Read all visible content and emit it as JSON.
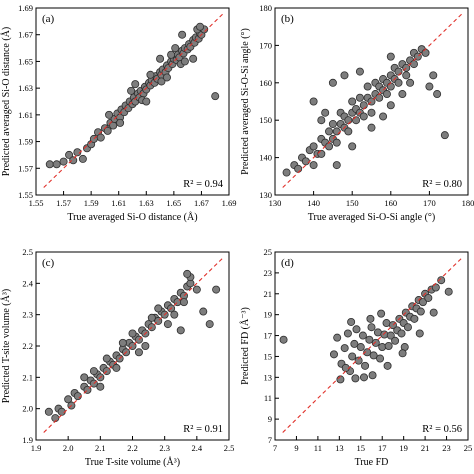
{
  "chart_data": [
    {
      "type": "scatter",
      "panel_label": "(a)",
      "xlabel": "True averaged Si-O distance (Å)",
      "ylabel": "Predicted averaged Si-O distance (Å)",
      "annotation": "R² = 0.94",
      "xlim": [
        1.55,
        1.69
      ],
      "ylim": [
        1.55,
        1.69
      ],
      "xticks": [
        "1.55",
        "1.57",
        "1.59",
        "1.61",
        "1.63",
        "1.65",
        "1.67",
        "1.69"
      ],
      "yticks": [
        "1.55",
        "1.57",
        "1.59",
        "1.61",
        "1.63",
        "1.65",
        "1.67",
        "1.69"
      ],
      "ideal_line": true,
      "points": [
        [
          1.56,
          1.573
        ],
        [
          1.565,
          1.573
        ],
        [
          1.57,
          1.575
        ],
        [
          1.574,
          1.58
        ],
        [
          1.577,
          1.576
        ],
        [
          1.58,
          1.582
        ],
        [
          1.584,
          1.577
        ],
        [
          1.587,
          1.585
        ],
        [
          1.59,
          1.588
        ],
        [
          1.592,
          1.592
        ],
        [
          1.595,
          1.597
        ],
        [
          1.597,
          1.593
        ],
        [
          1.6,
          1.6
        ],
        [
          1.602,
          1.598
        ],
        [
          1.604,
          1.604
        ],
        [
          1.606,
          1.602
        ],
        [
          1.607,
          1.607
        ],
        [
          1.609,
          1.611
        ],
        [
          1.611,
          1.608
        ],
        [
          1.612,
          1.614
        ],
        [
          1.614,
          1.612
        ],
        [
          1.615,
          1.617
        ],
        [
          1.617,
          1.615
        ],
        [
          1.618,
          1.62
        ],
        [
          1.62,
          1.618
        ],
        [
          1.621,
          1.623
        ],
        [
          1.622,
          1.62
        ],
        [
          1.624,
          1.626
        ],
        [
          1.625,
          1.623
        ],
        [
          1.626,
          1.628
        ],
        [
          1.628,
          1.626
        ],
        [
          1.629,
          1.631
        ],
        [
          1.63,
          1.629
        ],
        [
          1.632,
          1.634
        ],
        [
          1.633,
          1.632
        ],
        [
          1.634,
          1.636
        ],
        [
          1.636,
          1.634
        ],
        [
          1.637,
          1.639
        ],
        [
          1.638,
          1.637
        ],
        [
          1.64,
          1.642
        ],
        [
          1.641,
          1.64
        ],
        [
          1.642,
          1.644
        ],
        [
          1.644,
          1.642
        ],
        [
          1.645,
          1.647
        ],
        [
          1.646,
          1.645
        ],
        [
          1.648,
          1.65
        ],
        [
          1.649,
          1.648
        ],
        [
          1.65,
          1.652
        ],
        [
          1.652,
          1.651
        ],
        [
          1.653,
          1.655
        ],
        [
          1.654,
          1.653
        ],
        [
          1.656,
          1.658
        ],
        [
          1.657,
          1.656
        ],
        [
          1.658,
          1.66
        ],
        [
          1.66,
          1.659
        ],
        [
          1.661,
          1.663
        ],
        [
          1.662,
          1.661
        ],
        [
          1.664,
          1.666
        ],
        [
          1.665,
          1.664
        ],
        [
          1.666,
          1.668
        ],
        [
          1.668,
          1.667
        ],
        [
          1.669,
          1.671
        ],
        [
          1.67,
          1.67
        ],
        [
          1.672,
          1.674
        ],
        [
          1.619,
          1.628
        ],
        [
          1.627,
          1.621
        ],
        [
          1.633,
          1.64
        ],
        [
          1.641,
          1.635
        ],
        [
          1.648,
          1.655
        ],
        [
          1.655,
          1.648
        ],
        [
          1.603,
          1.61
        ],
        [
          1.611,
          1.604
        ],
        [
          1.656,
          1.67
        ],
        [
          1.664,
          1.652
        ],
        [
          1.667,
          1.674
        ],
        [
          1.669,
          1.676
        ],
        [
          1.68,
          1.624
        ],
        [
          1.64,
          1.652
        ],
        [
          1.622,
          1.633
        ],
        [
          1.63,
          1.62
        ],
        [
          1.645,
          1.638
        ],
        [
          1.651,
          1.66
        ],
        [
          1.658,
          1.65
        ]
      ]
    },
    {
      "type": "scatter",
      "panel_label": "(b)",
      "xlabel": "True averaged Si-O-Si angle (°)",
      "ylabel": "Predicted averaged Si-O-Si angle (°)",
      "annotation": "R² = 0.80",
      "xlim": [
        130,
        180
      ],
      "ylim": [
        130,
        180
      ],
      "xticks": [
        "130",
        "140",
        "150",
        "160",
        "170",
        "180"
      ],
      "yticks": [
        "130",
        "140",
        "150",
        "160",
        "170",
        "180"
      ],
      "ideal_line": true,
      "points": [
        [
          133,
          136
        ],
        [
          135,
          138
        ],
        [
          136,
          137
        ],
        [
          137,
          140
        ],
        [
          138,
          139
        ],
        [
          139,
          142
        ],
        [
          140,
          138
        ],
        [
          140,
          143
        ],
        [
          141,
          141
        ],
        [
          142,
          145
        ],
        [
          142,
          141
        ],
        [
          143,
          144
        ],
        [
          144,
          143
        ],
        [
          144,
          147
        ],
        [
          145,
          145
        ],
        [
          145,
          149
        ],
        [
          146,
          147
        ],
        [
          146,
          144
        ],
        [
          147,
          149
        ],
        [
          147,
          152
        ],
        [
          148,
          148
        ],
        [
          148,
          151
        ],
        [
          149,
          150
        ],
        [
          149,
          147
        ],
        [
          150,
          152
        ],
        [
          150,
          155
        ],
        [
          151,
          150
        ],
        [
          151,
          153
        ],
        [
          152,
          152
        ],
        [
          152,
          156
        ],
        [
          153,
          154
        ],
        [
          153,
          151
        ],
        [
          154,
          156
        ],
        [
          154,
          159
        ],
        [
          155,
          155
        ],
        [
          155,
          152
        ],
        [
          156,
          157
        ],
        [
          156,
          160
        ],
        [
          157,
          156
        ],
        [
          157,
          159
        ],
        [
          158,
          158
        ],
        [
          158,
          161
        ],
        [
          159,
          160
        ],
        [
          159,
          157
        ],
        [
          160,
          162
        ],
        [
          160,
          159
        ],
        [
          161,
          161
        ],
        [
          161,
          164
        ],
        [
          162,
          163
        ],
        [
          162,
          160
        ],
        [
          163,
          165
        ],
        [
          164,
          164
        ],
        [
          164,
          162
        ],
        [
          165,
          166
        ],
        [
          166,
          165
        ],
        [
          166,
          168
        ],
        [
          167,
          167
        ],
        [
          168,
          169
        ],
        [
          169,
          168
        ],
        [
          145,
          160
        ],
        [
          148,
          162
        ],
        [
          140,
          155
        ],
        [
          152,
          163
        ],
        [
          150,
          143
        ],
        [
          155,
          148
        ],
        [
          158,
          151
        ],
        [
          160,
          154
        ],
        [
          163,
          157
        ],
        [
          146,
          138
        ],
        [
          142,
          150
        ],
        [
          160,
          167
        ],
        [
          143,
          152
        ],
        [
          165,
          160
        ],
        [
          170,
          159
        ],
        [
          171,
          162
        ],
        [
          174,
          146
        ],
        [
          172,
          157
        ]
      ]
    },
    {
      "type": "scatter",
      "panel_label": "(c)",
      "xlabel": "True T-site volume (Å³)",
      "ylabel": "Predicted T-site volume (Å³)",
      "annotation": "R² = 0.91",
      "xlim": [
        1.9,
        2.5
      ],
      "ylim": [
        1.9,
        2.5
      ],
      "xticks": [
        "1.9",
        "2.0",
        "2.1",
        "2.2",
        "2.3",
        "2.4",
        "2.5"
      ],
      "yticks": [
        "1.9",
        "2.0",
        "2.1",
        "2.2",
        "2.3",
        "2.4",
        "2.5"
      ],
      "ideal_line": true,
      "points": [
        [
          1.94,
          1.99
        ],
        [
          1.96,
          1.97
        ],
        [
          1.97,
          2.0
        ],
        [
          1.98,
          1.99
        ],
        [
          2.0,
          2.03
        ],
        [
          2.01,
          2.01
        ],
        [
          2.02,
          2.05
        ],
        [
          2.03,
          2.04
        ],
        [
          2.05,
          2.07
        ],
        [
          2.06,
          2.06
        ],
        [
          2.07,
          2.09
        ],
        [
          2.08,
          2.08
        ],
        [
          2.09,
          2.11
        ],
        [
          2.1,
          2.1
        ],
        [
          2.11,
          2.13
        ],
        [
          2.12,
          2.12
        ],
        [
          2.13,
          2.15
        ],
        [
          2.14,
          2.14
        ],
        [
          2.15,
          2.17
        ],
        [
          2.16,
          2.16
        ],
        [
          2.17,
          2.19
        ],
        [
          2.18,
          2.18
        ],
        [
          2.19,
          2.21
        ],
        [
          2.2,
          2.2
        ],
        [
          2.21,
          2.23
        ],
        [
          2.22,
          2.22
        ],
        [
          2.23,
          2.25
        ],
        [
          2.24,
          2.24
        ],
        [
          2.25,
          2.27
        ],
        [
          2.26,
          2.26
        ],
        [
          2.27,
          2.29
        ],
        [
          2.28,
          2.28
        ],
        [
          2.29,
          2.31
        ],
        [
          2.3,
          2.3
        ],
        [
          2.31,
          2.33
        ],
        [
          2.32,
          2.32
        ],
        [
          2.33,
          2.35
        ],
        [
          2.34,
          2.34
        ],
        [
          2.35,
          2.37
        ],
        [
          2.36,
          2.36
        ],
        [
          2.37,
          2.39
        ],
        [
          2.38,
          2.4
        ],
        [
          2.12,
          2.16
        ],
        [
          2.15,
          2.13
        ],
        [
          2.2,
          2.24
        ],
        [
          2.24,
          2.2
        ],
        [
          2.28,
          2.32
        ],
        [
          2.31,
          2.27
        ],
        [
          2.08,
          2.12
        ],
        [
          2.1,
          2.07
        ],
        [
          2.17,
          2.21
        ],
        [
          2.22,
          2.18
        ],
        [
          2.26,
          2.29
        ],
        [
          2.33,
          2.3
        ],
        [
          2.36,
          2.34
        ],
        [
          2.38,
          2.42
        ],
        [
          2.37,
          2.43
        ],
        [
          2.4,
          2.38
        ],
        [
          2.42,
          2.31
        ],
        [
          2.44,
          2.27
        ],
        [
          2.46,
          2.38
        ],
        [
          2.35,
          2.25
        ],
        [
          2.05,
          2.1
        ]
      ]
    },
    {
      "type": "scatter",
      "panel_label": "(d)",
      "xlabel": "True FD",
      "ylabel": "Predicted FD (Å⁻³)",
      "annotation": "R² = 0.56",
      "xlim": [
        7,
        25
      ],
      "ylim": [
        7,
        25
      ],
      "xticks": [
        "7",
        "9",
        "11",
        "13",
        "15",
        "17",
        "19",
        "21",
        "23",
        "25"
      ],
      "yticks": [
        "7",
        "9",
        "11",
        "13",
        "15",
        "17",
        "19",
        "21",
        "23",
        "25"
      ],
      "ideal_line": true,
      "points": [
        [
          7.8,
          16.6
        ],
        [
          12.5,
          15.2
        ],
        [
          12.8,
          16.8
        ],
        [
          13.2,
          14.3
        ],
        [
          13.5,
          15.8
        ],
        [
          13.8,
          17.2
        ],
        [
          14.0,
          13.6
        ],
        [
          14.2,
          15.0
        ],
        [
          14.4,
          16.2
        ],
        [
          14.6,
          17.6
        ],
        [
          14.8,
          14.6
        ],
        [
          15.0,
          15.9
        ],
        [
          15.2,
          17.0
        ],
        [
          15.4,
          14.1
        ],
        [
          15.6,
          15.4
        ],
        [
          15.8,
          16.6
        ],
        [
          16.0,
          17.8
        ],
        [
          16.2,
          15.1
        ],
        [
          16.4,
          16.3
        ],
        [
          16.6,
          17.3
        ],
        [
          16.8,
          14.8
        ],
        [
          17.0,
          15.9
        ],
        [
          17.2,
          17.1
        ],
        [
          17.4,
          18.2
        ],
        [
          17.6,
          16.0
        ],
        [
          17.8,
          17.0
        ],
        [
          18.0,
          18.0
        ],
        [
          18.2,
          16.5
        ],
        [
          18.4,
          17.5
        ],
        [
          18.6,
          18.6
        ],
        [
          18.8,
          17.2
        ],
        [
          19.0,
          18.2
        ],
        [
          19.2,
          19.2
        ],
        [
          19.4,
          17.8
        ],
        [
          19.6,
          18.8
        ],
        [
          19.8,
          19.8
        ],
        [
          20.0,
          18.6
        ],
        [
          20.2,
          19.6
        ],
        [
          20.4,
          20.4
        ],
        [
          20.6,
          19.3
        ],
        [
          20.8,
          20.2
        ],
        [
          21.0,
          21.0
        ],
        [
          21.3,
          20.6
        ],
        [
          21.6,
          21.4
        ],
        [
          22.0,
          21.6
        ],
        [
          22.5,
          22.3
        ],
        [
          23.2,
          21.2
        ],
        [
          13.1,
          12.8
        ],
        [
          14.5,
          12.9
        ],
        [
          16.1,
          13.2
        ],
        [
          17.5,
          14.1
        ],
        [
          19.1,
          15.9
        ],
        [
          15.9,
          18.6
        ],
        [
          14.1,
          18.3
        ],
        [
          20.5,
          17.2
        ],
        [
          13.6,
          13.9
        ],
        [
          18.9,
          15.3
        ],
        [
          21.8,
          19.2
        ],
        [
          16.9,
          19.1
        ],
        [
          15.3,
          13.0
        ]
      ]
    }
  ]
}
